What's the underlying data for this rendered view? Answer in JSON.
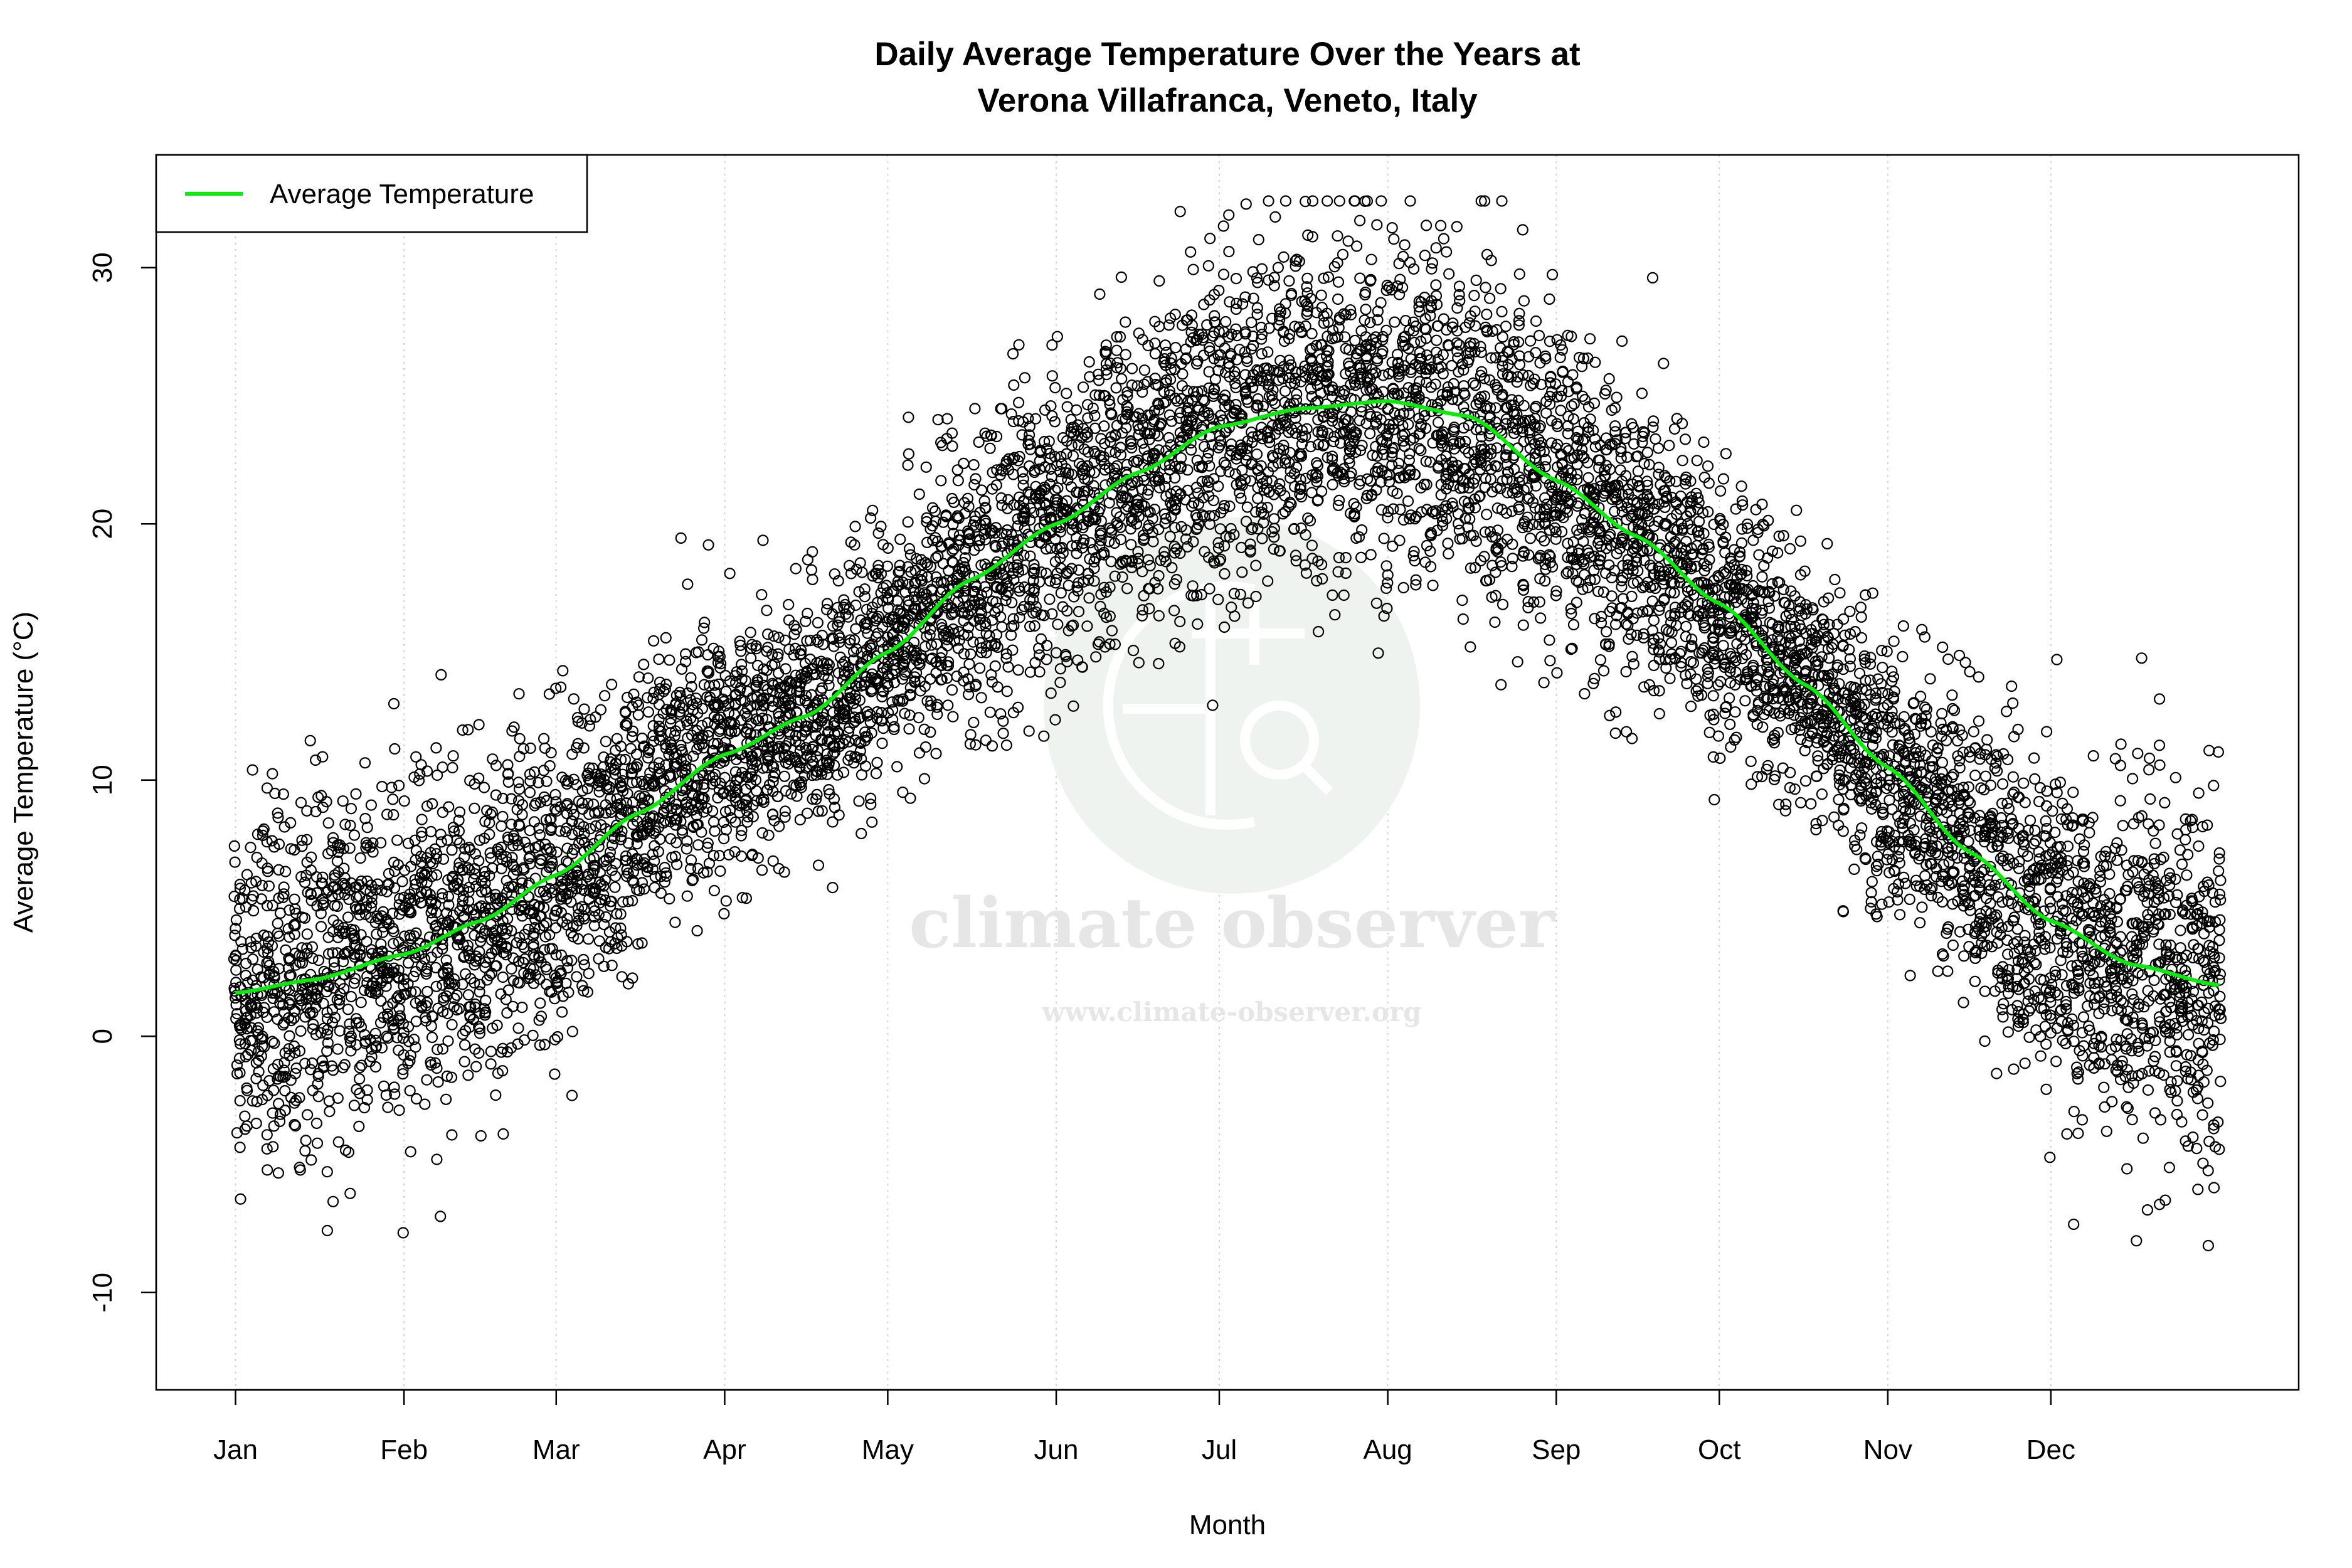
{
  "chart_data": {
    "type": "scatter",
    "title": [
      "Daily Average Temperature Over the Years at",
      "Verona Villafranca, Veneto, Italy"
    ],
    "xlabel": "Month",
    "ylabel": "Average Temperature (°C)",
    "x_unit": "day of year",
    "xlim": [
      -13.6,
      380.6
    ],
    "ylim": [
      -13.8,
      34.4
    ],
    "x_ticks": [
      {
        "label": "Jan",
        "day": 1
      },
      {
        "label": "Feb",
        "day": 32
      },
      {
        "label": "Mar",
        "day": 60
      },
      {
        "label": "Apr",
        "day": 91
      },
      {
        "label": "May",
        "day": 121
      },
      {
        "label": "Jun",
        "day": 152
      },
      {
        "label": "Jul",
        "day": 182
      },
      {
        "label": "Aug",
        "day": 213
      },
      {
        "label": "Sep",
        "day": 244
      },
      {
        "label": "Oct",
        "day": 274
      },
      {
        "label": "Nov",
        "day": 305
      },
      {
        "label": "Dec",
        "day": 335
      }
    ],
    "y_ticks": [
      -10,
      0,
      10,
      20,
      30
    ],
    "grid": "vertical dotted at month ticks",
    "legend": {
      "position": "top-left",
      "entries": [
        {
          "label": "Average Temperature",
          "color": "#00ee00"
        }
      ]
    },
    "series": [
      {
        "name": "Average Temperature",
        "kind": "smoothed line",
        "color": "#00ee00",
        "points": [
          [
            1,
            1.7
          ],
          [
            15,
            2.2
          ],
          [
            32,
            3.2
          ],
          [
            46,
            4.5
          ],
          [
            60,
            6.3
          ],
          [
            75,
            8.7
          ],
          [
            91,
            11.0
          ],
          [
            106,
            12.5
          ],
          [
            121,
            15.0
          ],
          [
            136,
            17.8
          ],
          [
            152,
            20.0
          ],
          [
            167,
            22.0
          ],
          [
            182,
            23.8
          ],
          [
            197,
            24.5
          ],
          [
            213,
            24.8
          ],
          [
            228,
            24.2
          ],
          [
            244,
            21.7
          ],
          [
            259,
            19.5
          ],
          [
            274,
            16.9
          ],
          [
            290,
            13.7
          ],
          [
            305,
            10.5
          ],
          [
            320,
            7.2
          ],
          [
            335,
            4.5
          ],
          [
            350,
            2.8
          ],
          [
            366,
            2.0
          ]
        ]
      },
      {
        "name": "",
        "kind": "daily observations (open circles)",
        "color": "#000000",
        "observed_range": [
          -12.1,
          32.6
        ]
      }
    ]
  },
  "watermark": {
    "brand": "climate observer",
    "url": "www.climate-observer.org"
  }
}
